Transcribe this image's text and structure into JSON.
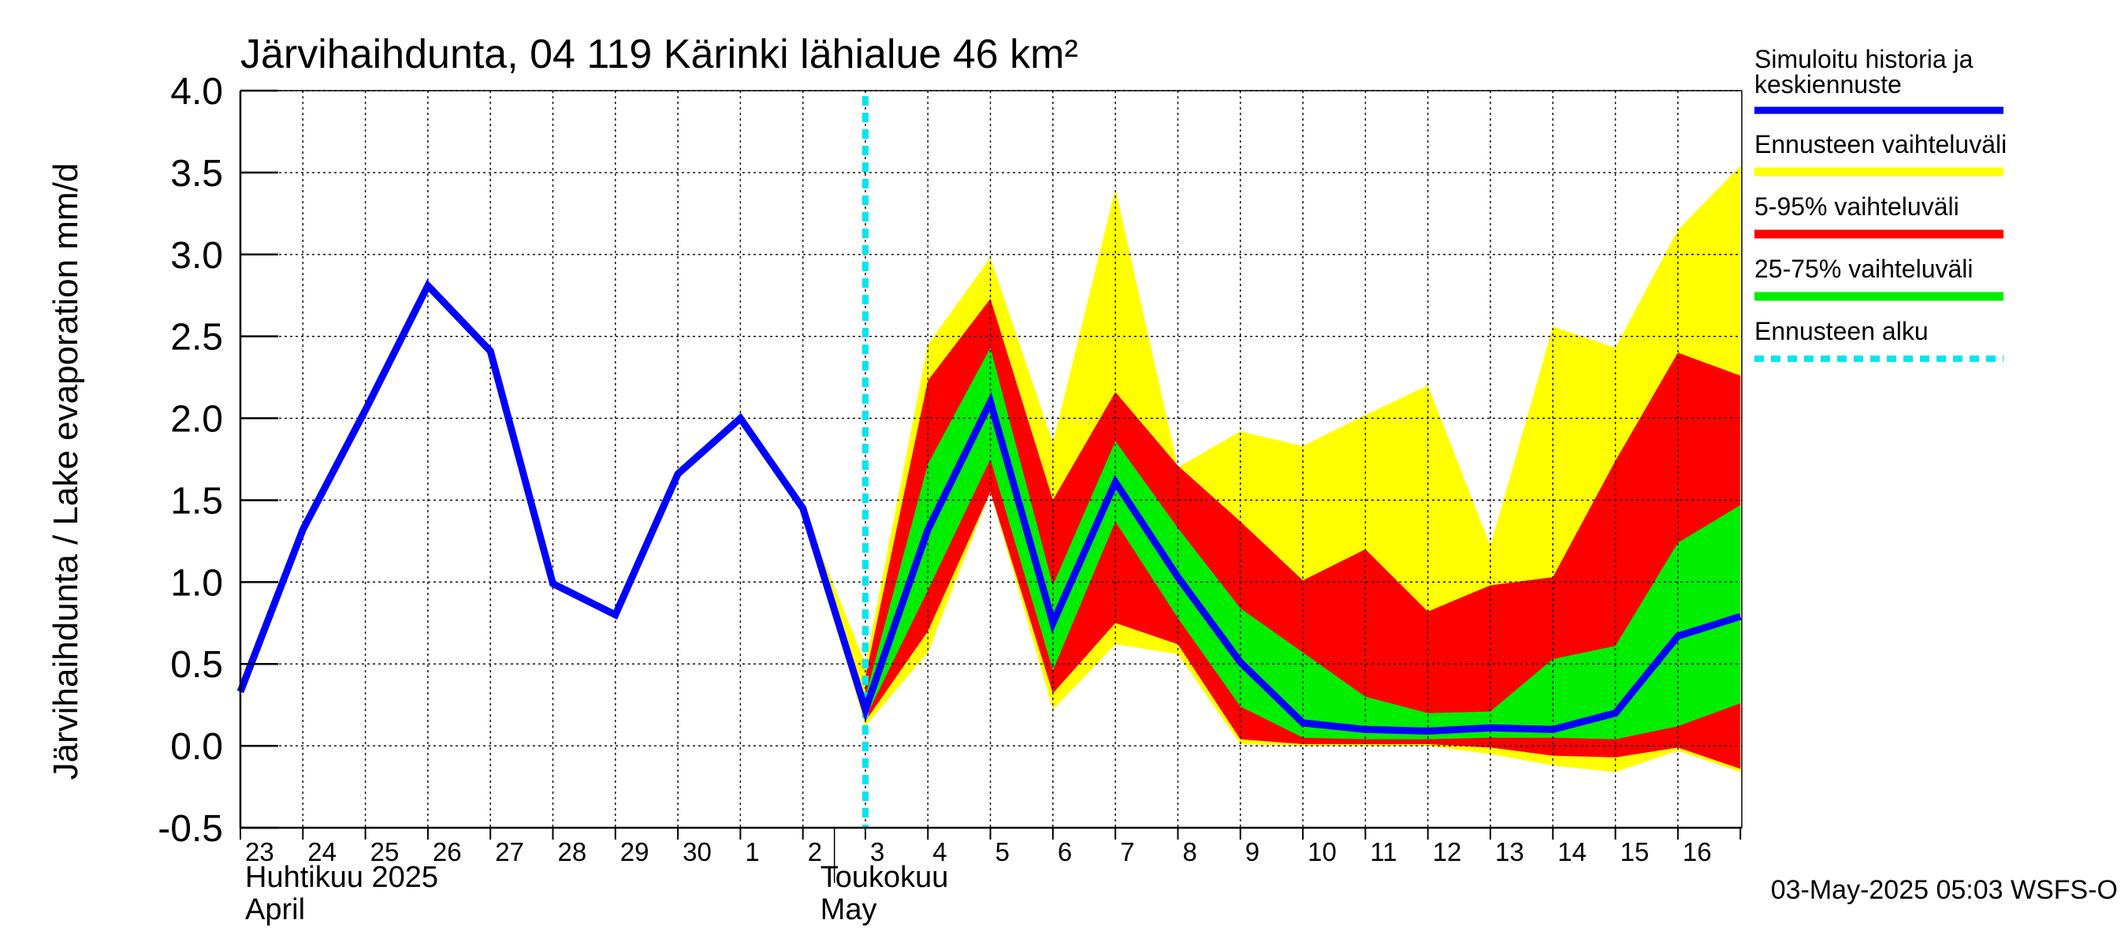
{
  "chart_data": {
    "type": "line",
    "title": "Järvihaihdunta, 04 119 Kärinki lähialue 46 km²",
    "ylabel": "Järvihaihdunta / Lake evaporation   mm/d",
    "ylim": [
      -0.5,
      4.0
    ],
    "yticks": [
      -0.5,
      0.0,
      0.5,
      1.0,
      1.5,
      2.0,
      2.5,
      3.0,
      3.5,
      4.0
    ],
    "ytick_labels": [
      "-0.5",
      "0.0",
      "0.5",
      "1.0",
      "1.5",
      "2.0",
      "2.5",
      "3.0",
      "3.5",
      "4.0"
    ],
    "xlim": [
      "2025-04-23",
      "2025-05-17"
    ],
    "day_labels": [
      "23",
      "24",
      "25",
      "26",
      "27",
      "28",
      "29",
      "30",
      "1",
      "2",
      "3",
      "4",
      "5",
      "6",
      "7",
      "8",
      "9",
      "10",
      "11",
      "12",
      "13",
      "14",
      "15",
      "16"
    ],
    "month_labels": [
      {
        "line1": "Huhtikuu  2025",
        "line2": "April",
        "start": "2025-04-23"
      },
      {
        "line1": "Toukokuu",
        "line2": "May",
        "start": "2025-05-02"
      }
    ],
    "grid": true,
    "legend_position": "right",
    "forecast_start": "2025-05-03",
    "x": [
      "2025-04-23",
      "2025-04-24",
      "2025-04-25",
      "2025-04-26",
      "2025-04-27",
      "2025-04-28",
      "2025-04-29",
      "2025-04-30",
      "2025-05-01",
      "2025-05-02",
      "2025-05-03",
      "2025-05-04",
      "2025-05-05",
      "2025-05-06",
      "2025-05-07",
      "2025-05-08",
      "2025-05-09",
      "2025-05-10",
      "2025-05-11",
      "2025-05-12",
      "2025-05-13",
      "2025-05-14",
      "2025-05-15",
      "2025-05-16",
      "2025-05-17"
    ],
    "series": [
      {
        "name": "Simuloitu historia ja keskiennuste",
        "color": "#0000ff",
        "values": [
          0.33,
          1.32,
          2.05,
          2.81,
          2.41,
          0.99,
          0.8,
          1.66,
          2.0,
          1.45,
          0.22,
          1.32,
          2.1,
          0.75,
          1.61,
          1.03,
          0.51,
          0.14,
          0.1,
          0.09,
          0.11,
          0.1,
          0.2,
          0.67,
          0.79
        ]
      }
    ],
    "bands": [
      {
        "name": "Ennusteen vaihteluväli",
        "color": "#ffff00",
        "x_start": "2025-05-02",
        "upper": [
          1.45,
          0.5,
          2.45,
          2.98,
          1.85,
          3.4,
          1.7,
          1.92,
          1.83,
          2.02,
          2.2,
          1.22,
          2.56,
          2.43,
          3.15,
          3.54
        ],
        "lower": [
          1.45,
          0.12,
          0.57,
          1.55,
          0.22,
          0.62,
          0.56,
          0.01,
          0.0,
          0.0,
          0.0,
          -0.05,
          -0.12,
          -0.16,
          -0.03,
          -0.16
        ]
      },
      {
        "name": "5-95% vaihteluväli",
        "color": "#ff0000",
        "x_start": "2025-05-03",
        "upper": [
          0.42,
          2.23,
          2.73,
          1.5,
          2.16,
          1.71,
          1.37,
          1.01,
          1.2,
          0.82,
          0.98,
          1.03,
          1.74,
          2.4,
          2.26
        ],
        "lower": [
          0.15,
          0.7,
          1.55,
          0.32,
          0.75,
          0.62,
          0.04,
          0.01,
          0.01,
          0.01,
          -0.01,
          -0.06,
          -0.07,
          -0.01,
          -0.14
        ]
      },
      {
        "name": "25-75% vaihteluväli",
        "color": "#00ee00",
        "x_start": "2025-05-03",
        "upper": [
          0.3,
          1.72,
          2.43,
          0.98,
          1.86,
          1.33,
          0.84,
          0.57,
          0.3,
          0.2,
          0.21,
          0.53,
          0.61,
          1.24,
          1.47
        ],
        "lower": [
          0.17,
          0.95,
          1.75,
          0.46,
          1.37,
          0.78,
          0.24,
          0.05,
          0.04,
          0.04,
          0.05,
          0.05,
          0.04,
          0.12,
          0.26
        ]
      }
    ],
    "legend": [
      {
        "label": "Simuloitu historia ja keskiennuste",
        "color": "#0000ff",
        "style": "line"
      },
      {
        "label": "Ennusteen vaihteluväli",
        "color": "#ffff00",
        "style": "band"
      },
      {
        "label": "5-95% vaihteluväli",
        "color": "#ff0000",
        "style": "band"
      },
      {
        "label": "25-75% vaihteluväli",
        "color": "#00ee00",
        "style": "band"
      },
      {
        "label": "Ennusteen alku",
        "color": "#00e5ee",
        "style": "dashed"
      }
    ],
    "footer": "03-May-2025 05:03 WSFS-O"
  }
}
